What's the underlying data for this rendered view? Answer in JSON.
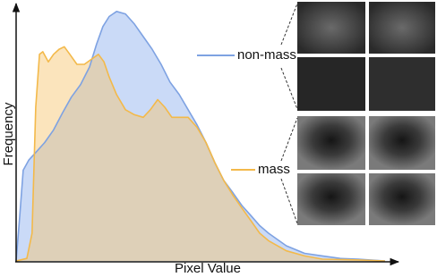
{
  "chart_data": {
    "type": "area",
    "xlabel": "Pixel Value",
    "ylabel": "Frequency",
    "xlim": [
      0,
      100
    ],
    "ylim": [
      0,
      100
    ],
    "series": [
      {
        "name": "non-mass",
        "color": "#7ea2e2",
        "fill": "#9fbcf0",
        "x": [
          0,
          1,
          1.9,
          3.4,
          5.3,
          7.7,
          10.1,
          12.6,
          14.9,
          17.4,
          19.8,
          21.7,
          23.4,
          25.1,
          27.1,
          29.5,
          31.9,
          34.3,
          36.7,
          39.1,
          41.5,
          44,
          46.4,
          48.8,
          51.2,
          53.6,
          56,
          58.5,
          60.9,
          63.3,
          65.7,
          68.1,
          72.9,
          77.8,
          82.6,
          87.4,
          92.3,
          99.5
        ],
        "values": [
          0,
          18,
          36,
          40,
          43,
          47,
          52,
          59,
          65,
          70,
          77,
          86,
          93,
          97,
          99,
          98,
          94,
          89,
          84,
          78,
          71,
          66,
          60,
          54,
          47,
          39,
          32,
          27,
          22,
          18,
          14,
          11,
          6,
          3,
          2,
          1,
          0.7,
          0
        ]
      },
      {
        "name": "mass",
        "color": "#f3b94a",
        "fill": "#f6c36a",
        "x": [
          0,
          2.9,
          4.3,
          5.3,
          6.3,
          7.2,
          8.7,
          10.1,
          11.6,
          13,
          14.5,
          16.4,
          18.4,
          20.3,
          22.2,
          23.7,
          25.1,
          27.1,
          29.5,
          31.9,
          34.3,
          36.2,
          38.2,
          40.1,
          42,
          44,
          46.4,
          48.8,
          51.2,
          53.6,
          56,
          58.5,
          60.9,
          63.3,
          65.7,
          68.1,
          72.9,
          77.8,
          82.6,
          92.3,
          99.5
        ],
        "values": [
          0,
          1,
          11,
          61,
          82,
          83,
          79,
          82,
          84,
          85,
          82,
          78,
          78,
          80,
          82,
          79,
          73,
          66,
          60,
          58,
          57,
          60,
          64,
          61,
          57,
          57,
          57,
          53,
          47,
          39,
          32,
          26,
          21,
          16,
          11,
          8,
          4,
          2,
          0.7,
          0.4,
          0
        ]
      }
    ]
  }
}
